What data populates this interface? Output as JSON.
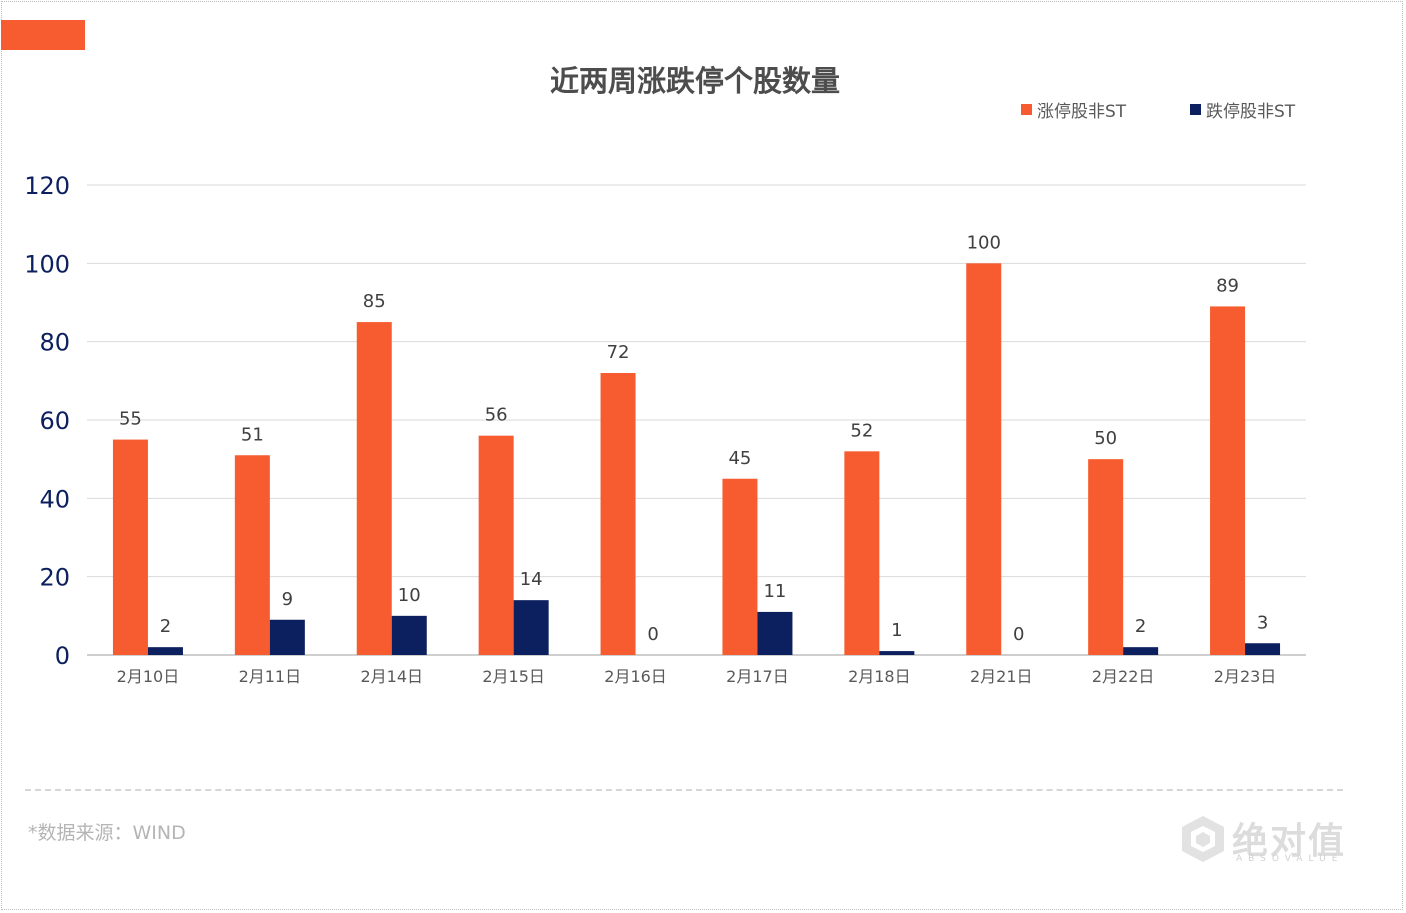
{
  "title": "近两周涨跌停个股数量",
  "legend": [
    {
      "label": "涨停股非ST",
      "color": "#f65c2f"
    },
    {
      "label": "跌停股非ST",
      "color": "#0c1f5e"
    }
  ],
  "source": "*数据来源：WIND",
  "logo": {
    "text": "绝对值",
    "subtext": "ABSOVALUE"
  },
  "chart_data": {
    "type": "bar",
    "title": "近两周涨跌停个股数量",
    "categories": [
      "2月10日",
      "2月11日",
      "2月14日",
      "2月15日",
      "2月16日",
      "2月17日",
      "2月18日",
      "2月21日",
      "2月22日",
      "2月23日"
    ],
    "series": [
      {
        "name": "涨停股非ST",
        "color": "#f65c2f",
        "values": [
          55,
          51,
          85,
          56,
          72,
          45,
          52,
          100,
          50,
          89
        ]
      },
      {
        "name": "跌停股非ST",
        "color": "#0c1f5e",
        "values": [
          2,
          9,
          10,
          14,
          0,
          11,
          1,
          0,
          2,
          3
        ]
      }
    ],
    "ylim": [
      0,
      120
    ],
    "yticks": [
      0,
      20,
      40,
      60,
      80,
      100,
      120
    ],
    "grid": true,
    "legend_position": "top-right",
    "xlabel": "",
    "ylabel": ""
  }
}
